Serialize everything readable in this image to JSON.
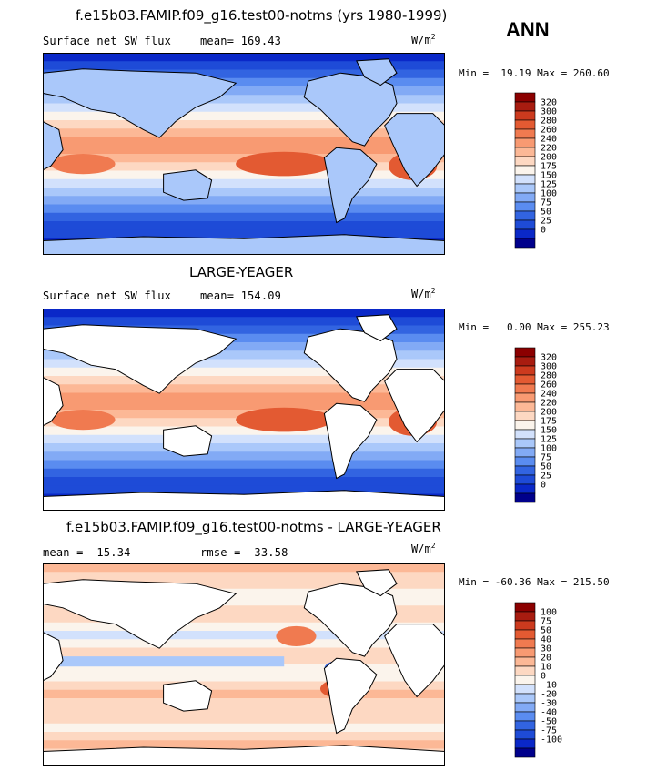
{
  "ann_label": "ANN",
  "colors": {
    "abs_scale": [
      "#00008b",
      "#0a28c8",
      "#1e4bd7",
      "#3264e1",
      "#5a8cf0",
      "#82aaf5",
      "#aac8fa",
      "#d2e1fc",
      "#fbf4ec",
      "#fdd8c2",
      "#fcb896",
      "#f89a72",
      "#f07a50",
      "#e35a32",
      "#cc3a1e",
      "#a81c10",
      "#8b0000"
    ],
    "diff_scale": [
      "#00008b",
      "#0a28c8",
      "#1e4bd7",
      "#3264e1",
      "#5a8cf0",
      "#82aaf5",
      "#aac8fa",
      "#d2e1fc",
      "#fbf4ec",
      "#fdd8c2",
      "#fcb896",
      "#f89a72",
      "#f07a50",
      "#e35a32",
      "#cc3a1e",
      "#a81c10",
      "#8b0000"
    ]
  },
  "chart_data": [
    {
      "type": "heatmap",
      "title": "f.e15b03.FAMIP.f09_g16.test00-notms (yrs 1980-1999)",
      "variable": "Surface net SW flux",
      "mean_label": "mean=",
      "mean": "169.43",
      "units_base": "W/m",
      "units_exp": "2",
      "min_label": "Min =",
      "min": "19.19",
      "max_label": "Max =",
      "max": "260.60",
      "colorbar_levels": [
        "320",
        "300",
        "280",
        "260",
        "240",
        "220",
        "200",
        "175",
        "150",
        "125",
        "100",
        "75",
        "50",
        "25",
        "0"
      ],
      "regions": {
        "north_polar": 60,
        "tropics": 245,
        "south_ocean": 90
      }
    },
    {
      "type": "heatmap",
      "title": "LARGE-YEAGER",
      "variable": "Surface net SW flux",
      "mean_label": "mean=",
      "mean": "154.09",
      "units_base": "W/m",
      "units_exp": "2",
      "min_label": "Min =",
      "min": "0.00",
      "max_label": "Max =",
      "max": "255.23",
      "colorbar_levels": [
        "320",
        "300",
        "280",
        "260",
        "240",
        "220",
        "200",
        "175",
        "150",
        "125",
        "100",
        "75",
        "50",
        "25",
        "0"
      ],
      "regions": {
        "north_polar": 50,
        "tropics": 235,
        "south_ocean": 80
      }
    },
    {
      "type": "heatmap",
      "title": "f.e15b03.FAMIP.f09_g16.test00-notms - LARGE-YEAGER",
      "variable": "",
      "mean_label": "mean =",
      "mean": "15.34",
      "rmse_label": "rmse =",
      "rmse": "33.58",
      "units_base": "W/m",
      "units_exp": "2",
      "min_label": "Min =",
      "min": "-60.36",
      "max_label": "Max =",
      "max": "215.50",
      "colorbar_levels": [
        "100",
        "75",
        "50",
        "40",
        "30",
        "20",
        "10",
        "0",
        "-10",
        "-20",
        "-30",
        "-40",
        "-50",
        "-75",
        "-100"
      ],
      "regions": {
        "north_polar": 20,
        "tropics": 10,
        "south_ocean": 5
      }
    }
  ]
}
